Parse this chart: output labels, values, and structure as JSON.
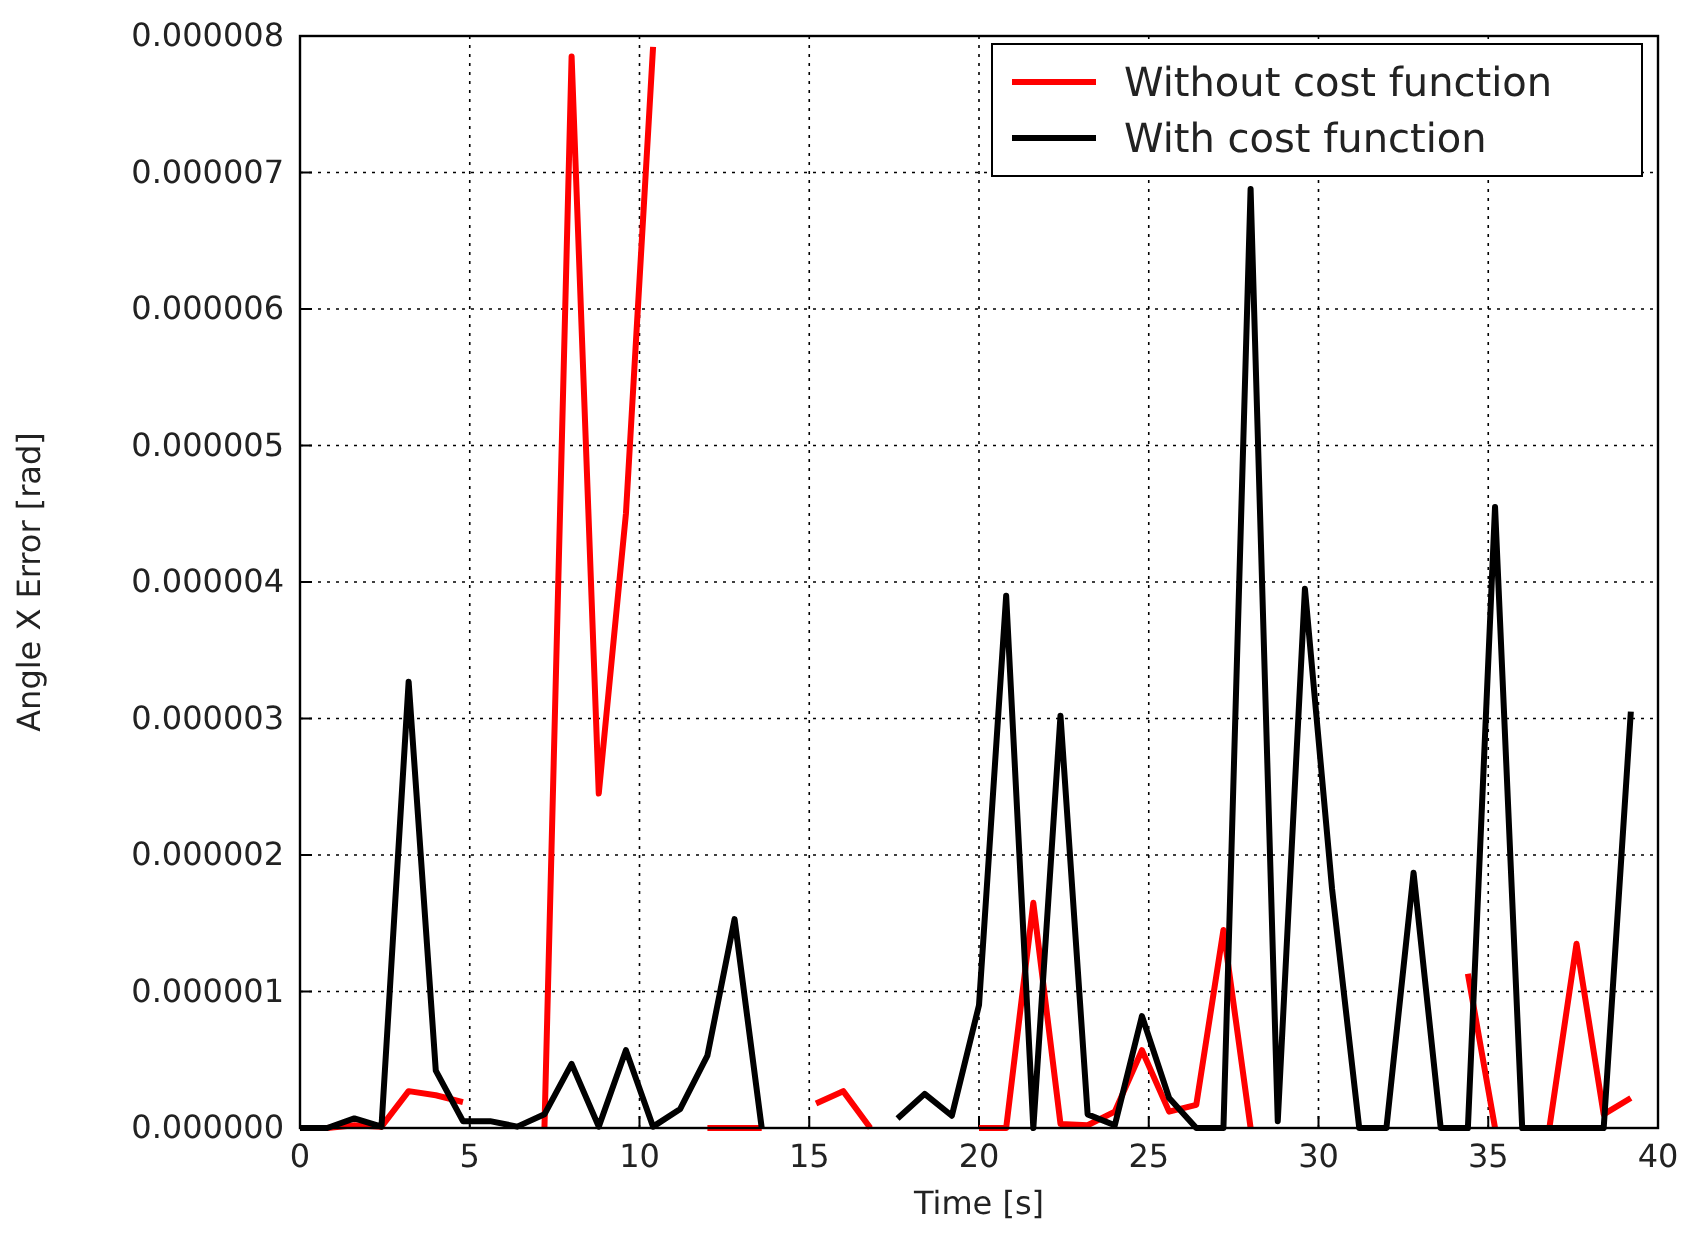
{
  "chart_data": {
    "type": "line",
    "xlabel": "Time [s]",
    "ylabel": "Angle X Error [rad]",
    "x": [
      0,
      0.8,
      1.6,
      2.4,
      3.2,
      4.0,
      4.8,
      5.6,
      6.4,
      7.2,
      8.0,
      8.8,
      9.6,
      10.4,
      11.2,
      12.0,
      12.8,
      13.6,
      14.4,
      15.2,
      16.0,
      16.8,
      17.6,
      18.4,
      19.2,
      20.0,
      20.8,
      21.6,
      22.4,
      23.2,
      24.0,
      24.8,
      25.6,
      26.4,
      27.2,
      28.0,
      28.8,
      29.6,
      30.4,
      31.2,
      32.0,
      32.8,
      33.6,
      34.4,
      35.2,
      36.0,
      36.8,
      37.6,
      38.4,
      39.2
    ],
    "series": [
      {
        "name": "Without cost function",
        "color": "#ff0000",
        "values": [
          0,
          0,
          2e-08,
          1e-08,
          2.7e-07,
          2.4e-07,
          1.9e-07,
          null,
          null,
          0,
          7.85e-06,
          2.45e-06,
          4.5e-06,
          7.92e-06,
          null,
          0,
          0,
          0,
          null,
          1.8e-07,
          2.7e-07,
          0,
          null,
          null,
          null,
          0,
          0,
          1.65e-06,
          3e-08,
          2e-08,
          1.2e-07,
          5.7e-07,
          1.2e-07,
          1.7e-07,
          1.45e-06,
          0,
          null,
          null,
          null,
          null,
          null,
          null,
          null,
          1.13e-06,
          0,
          null,
          0,
          1.35e-06,
          1e-07,
          2.2e-07
        ]
      },
      {
        "name": "With cost function",
        "color": "#000000",
        "values": [
          0,
          0,
          7e-08,
          1e-08,
          3.27e-06,
          4.2e-07,
          5e-08,
          5e-08,
          1e-08,
          1e-07,
          4.7e-07,
          1e-08,
          5.7e-07,
          1e-08,
          1.4e-07,
          5.3e-07,
          1.53e-06,
          0,
          null,
          null,
          null,
          null,
          7e-08,
          2.5e-07,
          9e-08,
          9e-07,
          3.9e-06,
          0,
          3.02e-06,
          1e-07,
          2e-08,
          8.2e-07,
          2.2e-07,
          0,
          0,
          6.88e-06,
          5e-08,
          3.95e-06,
          1.75e-06,
          0,
          0,
          1.87e-06,
          0,
          0,
          4.55e-06,
          0,
          0,
          0,
          0,
          3.05e-06
        ]
      }
    ],
    "xlim": [
      0,
      40
    ],
    "xticks": [
      0,
      5,
      10,
      15,
      20,
      25,
      30,
      35,
      40
    ],
    "ylim": [
      0,
      8e-06
    ],
    "yticks": [
      {
        "value": 0,
        "label": "0.000000"
      },
      {
        "value": 1e-06,
        "label": "0.000001"
      },
      {
        "value": 2e-06,
        "label": "0.000002"
      },
      {
        "value": 3e-06,
        "label": "0.000003"
      },
      {
        "value": 4e-06,
        "label": "0.000004"
      },
      {
        "value": 5e-06,
        "label": "0.000005"
      },
      {
        "value": 6e-06,
        "label": "0.000006"
      },
      {
        "value": 7e-06,
        "label": "0.000007"
      },
      {
        "value": 8e-06,
        "label": "0.000008"
      }
    ],
    "grid": true,
    "legend": "top right",
    "line_style": "solid",
    "marker": "none"
  }
}
